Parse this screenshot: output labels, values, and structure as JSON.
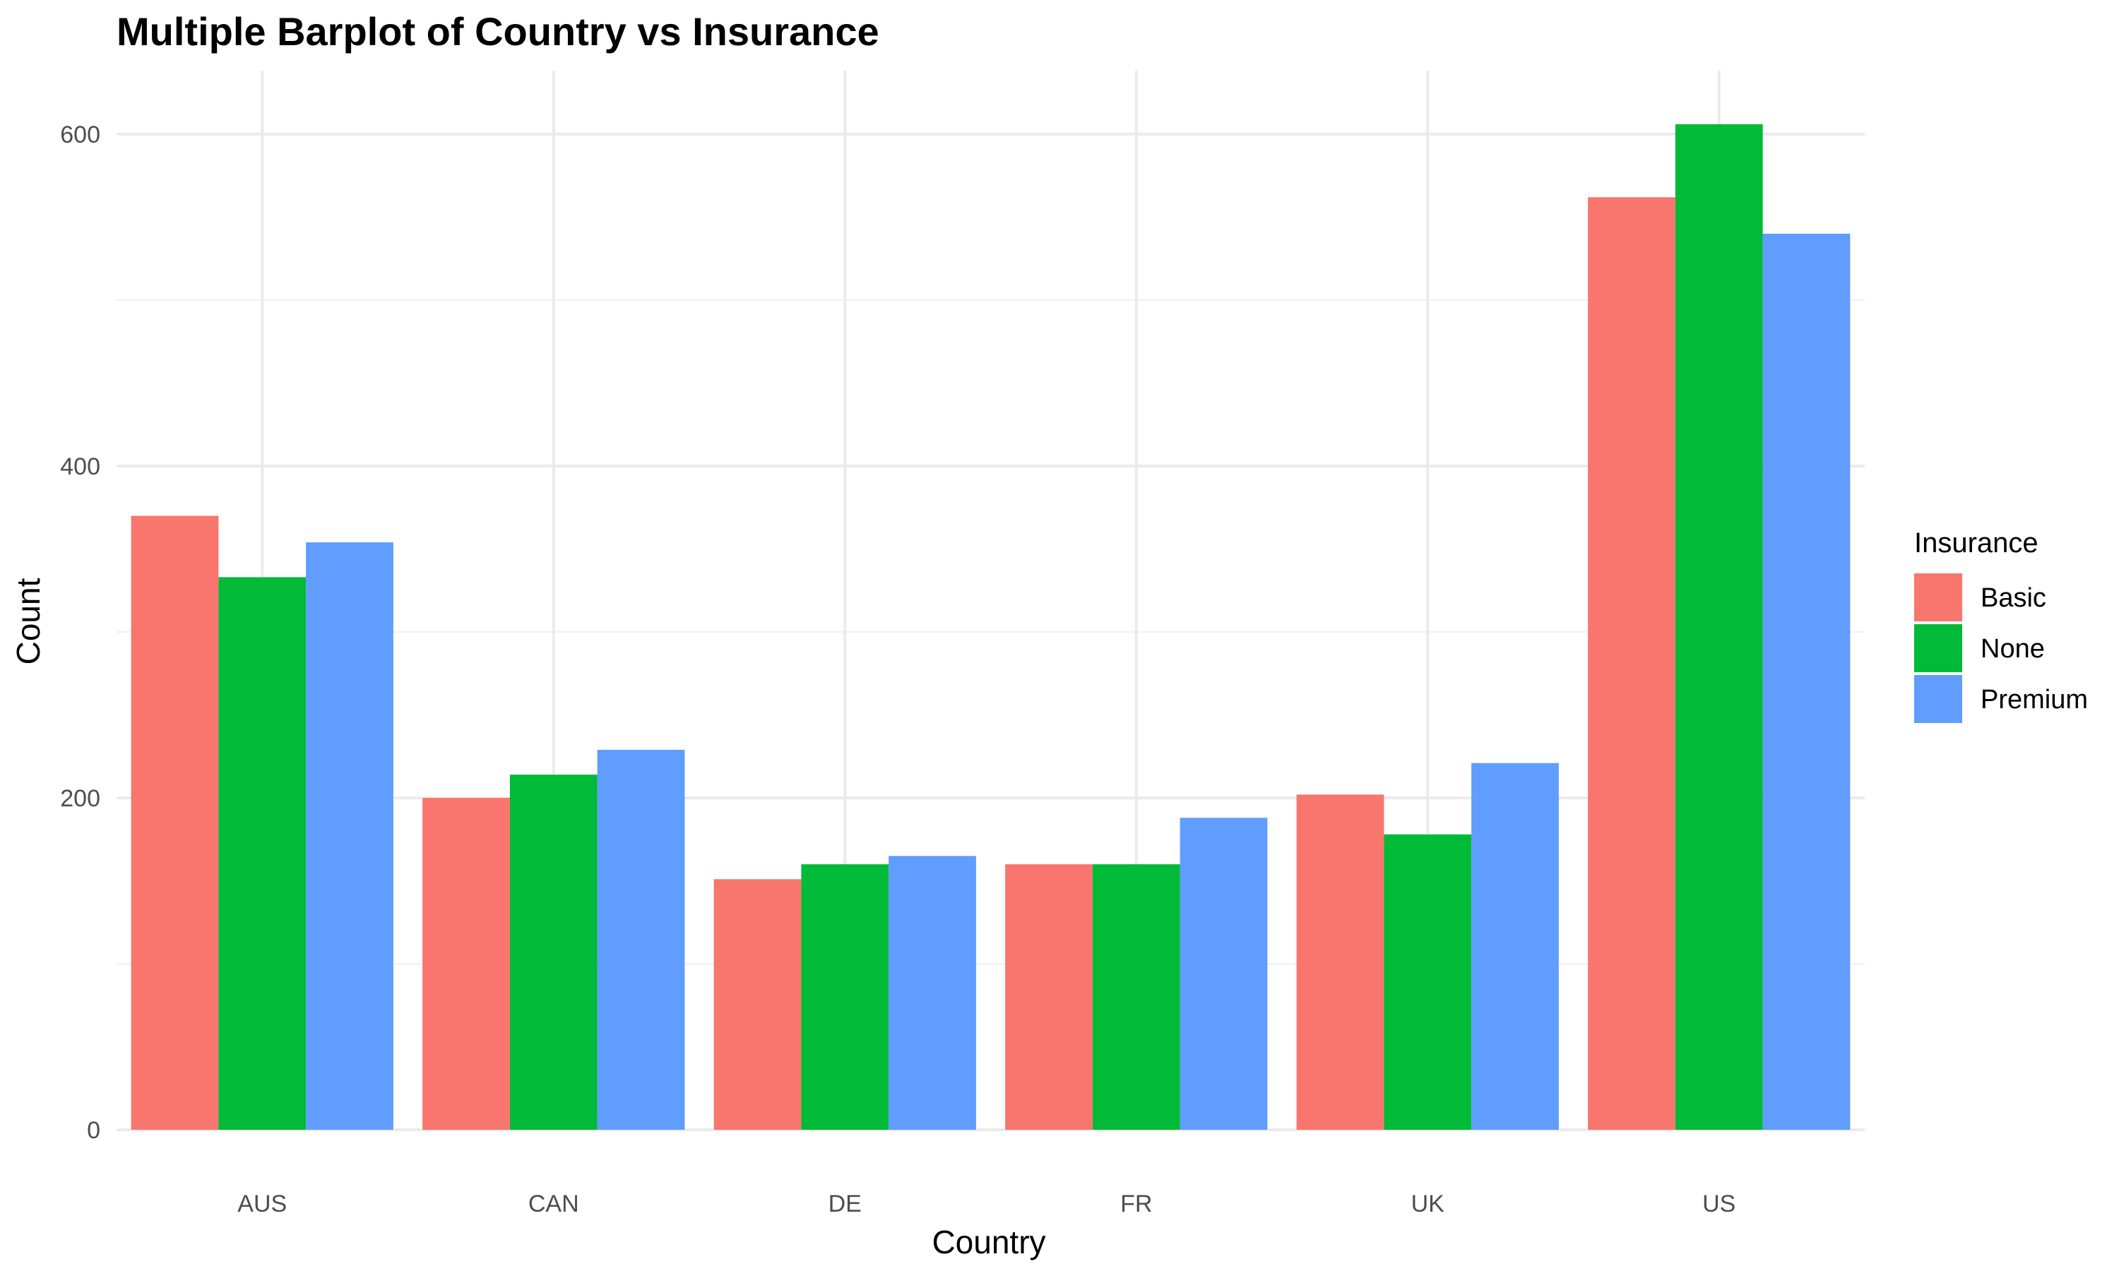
{
  "chart_data": {
    "type": "bar",
    "title": "Multiple Barplot of Country vs Insurance",
    "xlabel": "Country",
    "ylabel": "Count",
    "categories": [
      "AUS",
      "CAN",
      "DE",
      "FR",
      "UK",
      "US"
    ],
    "series": [
      {
        "name": "Basic",
        "color": "#F8766D",
        "values": [
          370,
          200,
          151,
          160,
          202,
          562
        ]
      },
      {
        "name": "None",
        "color": "#00BA38",
        "values": [
          333,
          214,
          160,
          160,
          178,
          606
        ]
      },
      {
        "name": "Premium",
        "color": "#619CFF",
        "values": [
          354,
          229,
          165,
          188,
          221,
          540
        ]
      }
    ],
    "ylim": [
      0,
      640
    ],
    "yticks": [
      "0",
      "200",
      "400",
      "600"
    ],
    "grid": true,
    "legend": {
      "title": "Insurance",
      "position": "right"
    }
  }
}
